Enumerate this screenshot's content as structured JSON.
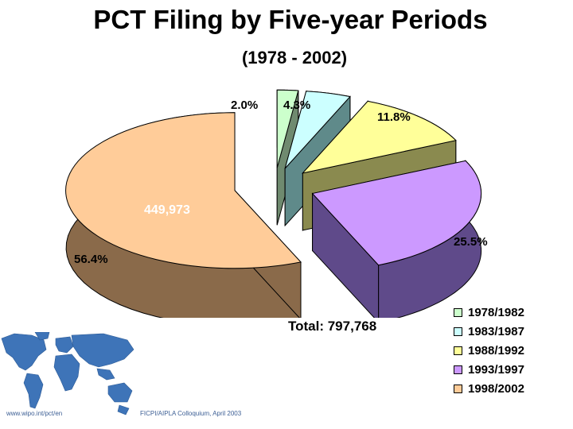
{
  "slide": {
    "title": "PCT Filing by Five-year Periods",
    "subtitle": "(1978 - 2002)",
    "total": "Total: 797,768",
    "footer_left": "www.wipo.int/pct/en",
    "footer_right": "FICPI/AIPLA Colloquium, April 2003"
  },
  "chart_data": {
    "type": "pie",
    "title": "PCT Filing by Five-year Periods",
    "subtitle": "(1978 - 2002)",
    "categories": [
      "1978/1982",
      "1983/1987",
      "1988/1992",
      "1993/1997",
      "1998/2002"
    ],
    "values": [
      2.0,
      4.3,
      11.8,
      25.5,
      56.4
    ],
    "value_labels": [
      "2.0%",
      "4.3%",
      "11.8%",
      "25.5%",
      "56.4%"
    ],
    "annotation": "449,973",
    "total_label": "Total: 797,768",
    "colors": [
      "#ccffcc",
      "#ccffff",
      "#ffff99",
      "#cc99ff",
      "#ffcc99"
    ],
    "side_colors": [
      "#6f8a6f",
      "#5f8a8a",
      "#8a8a4f",
      "#5f4a8a",
      "#8a6a4a"
    ],
    "legend_position": "bottom-right",
    "style": "3d-exploded"
  }
}
